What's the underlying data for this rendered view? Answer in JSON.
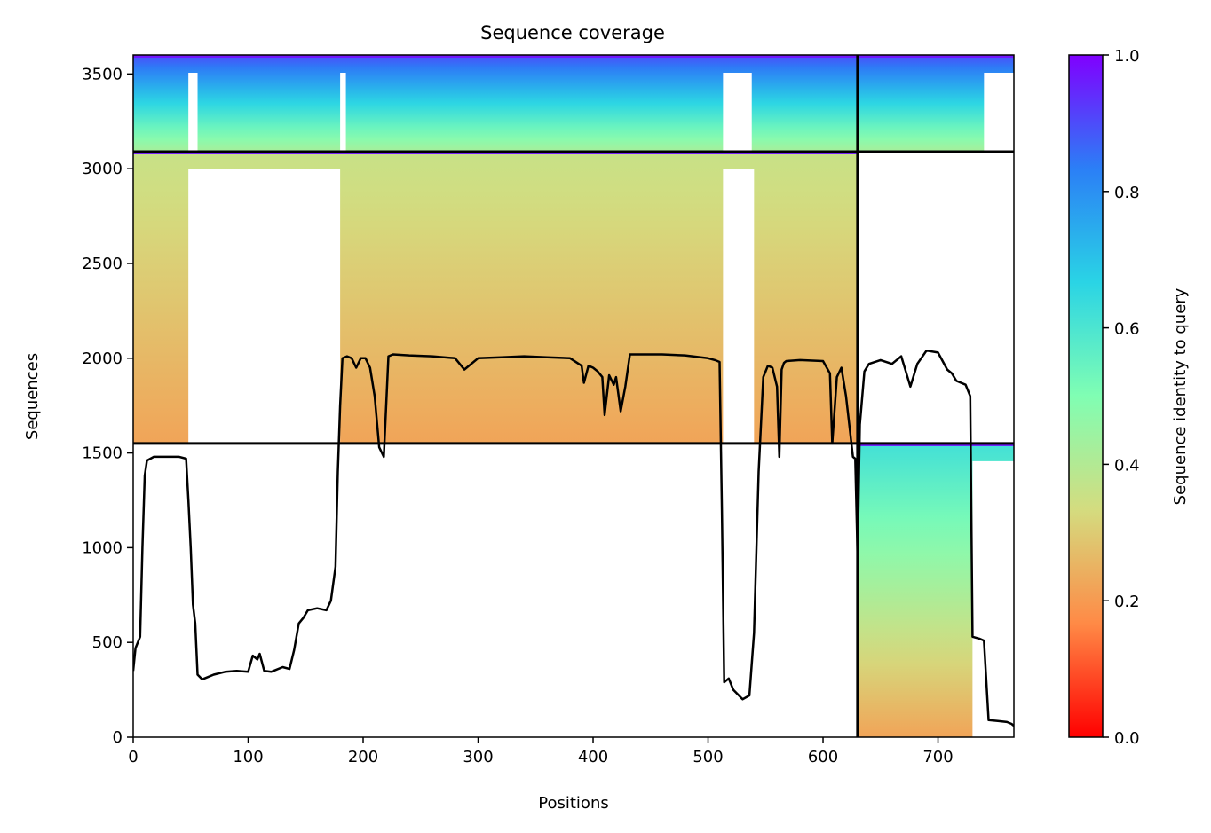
{
  "chart_data": {
    "type": "heatmap",
    "title": "Sequence coverage",
    "xlabel": "Positions",
    "ylabel": "Sequences",
    "xlim": [
      0,
      766
    ],
    "ylim": [
      0,
      3600
    ],
    "xticks": [
      0,
      100,
      200,
      300,
      400,
      500,
      600,
      700
    ],
    "yticks": [
      0,
      500,
      1000,
      1500,
      2000,
      2500,
      3000,
      3500
    ],
    "colorbar": {
      "label": "Sequence identity to query",
      "colormap": "rainbow_r",
      "range": [
        0,
        1
      ],
      "ticks": [
        "0.0",
        "0.2",
        "0.4",
        "0.6",
        "0.8",
        "1.0"
      ],
      "colors": [
        "#ff0000",
        "#ff8a46",
        "#d4dc7f",
        "#80feb3",
        "#2ad4e5",
        "#2b7ff6",
        "#8000ff"
      ]
    },
    "separators": {
      "horizontal": [
        {
          "y": 1550,
          "x_from": 0,
          "x_to": 766
        },
        {
          "y": 3090,
          "x_from": 0,
          "x_to": 766
        }
      ],
      "vertical": [
        {
          "x": 630,
          "y_from": 0,
          "y_to": 3600
        }
      ]
    },
    "blocks": [
      {
        "name": "block-top",
        "x": [
          0,
          766
        ],
        "y": [
          3090,
          3600
        ],
        "identity_top": 0.9,
        "identity_bottom": 0.42,
        "gaps_x": [
          [
            48,
            56
          ],
          [
            180,
            185
          ],
          [
            513,
            538
          ],
          [
            740,
            766
          ]
        ]
      },
      {
        "name": "block-middle",
        "x": [
          0,
          630
        ],
        "y": [
          1550,
          3090
        ],
        "identity_top": 0.36,
        "identity_bottom": 0.22,
        "gaps_x": [
          [
            48,
            180
          ],
          [
            513,
            540
          ]
        ]
      },
      {
        "name": "block-bottom",
        "x": [
          630,
          766
        ],
        "y": [
          0,
          1550
        ],
        "identity_top": 0.62,
        "identity_bottom": 0.22,
        "gaps_x": [
          [
            730,
            766
          ]
        ]
      }
    ],
    "coverage_line": {
      "x": [
        0,
        2,
        6,
        8,
        10,
        12,
        18,
        30,
        40,
        46,
        48,
        50,
        52,
        54,
        56,
        60,
        70,
        80,
        90,
        100,
        104,
        108,
        110,
        114,
        120,
        130,
        136,
        140,
        144,
        148,
        152,
        160,
        168,
        172,
        176,
        178,
        180,
        182,
        186,
        190,
        194,
        198,
        202,
        206,
        210,
        214,
        218,
        222,
        226,
        240,
        260,
        280,
        288,
        300,
        320,
        340,
        360,
        380,
        390,
        392,
        396,
        400,
        404,
        408,
        410,
        414,
        418,
        420,
        424,
        428,
        432,
        440,
        460,
        480,
        500,
        506,
        510,
        512,
        514,
        518,
        522,
        530,
        536,
        540,
        544,
        548,
        552,
        556,
        560,
        562,
        564,
        566,
        568,
        580,
        600,
        606,
        608,
        612,
        616,
        620,
        626,
        628,
        630,
        632,
        636,
        640,
        650,
        660,
        668,
        676,
        682,
        690,
        700,
        708,
        712,
        716,
        724,
        728,
        730,
        736,
        740,
        744,
        752,
        760,
        764,
        766
      ],
      "y": [
        350,
        470,
        530,
        1000,
        1380,
        1460,
        1480,
        1480,
        1480,
        1470,
        1250,
        1000,
        700,
        600,
        330,
        305,
        330,
        345,
        350,
        345,
        430,
        410,
        440,
        350,
        345,
        370,
        360,
        460,
        600,
        630,
        670,
        680,
        670,
        720,
        900,
        1400,
        1750,
        2000,
        2010,
        2000,
        1950,
        2000,
        2000,
        1950,
        1800,
        1530,
        1480,
        2010,
        2020,
        2015,
        2010,
        2000,
        1940,
        2000,
        2005,
        2010,
        2005,
        2000,
        1960,
        1870,
        1960,
        1950,
        1930,
        1900,
        1700,
        1910,
        1860,
        1900,
        1720,
        1850,
        2020,
        2020,
        2020,
        2015,
        2000,
        1990,
        1980,
        1200,
        290,
        310,
        250,
        200,
        220,
        550,
        1400,
        1900,
        1960,
        1950,
        1850,
        1480,
        1940,
        1975,
        1985,
        1990,
        1985,
        1920,
        1550,
        1900,
        1950,
        1800,
        1480,
        1470,
        950,
        1650,
        1930,
        1970,
        1990,
        1970,
        2010,
        1850,
        1970,
        2040,
        2030,
        1940,
        1920,
        1880,
        1860,
        1800,
        530,
        520,
        510,
        90,
        85,
        80,
        70,
        60
      ]
    }
  }
}
